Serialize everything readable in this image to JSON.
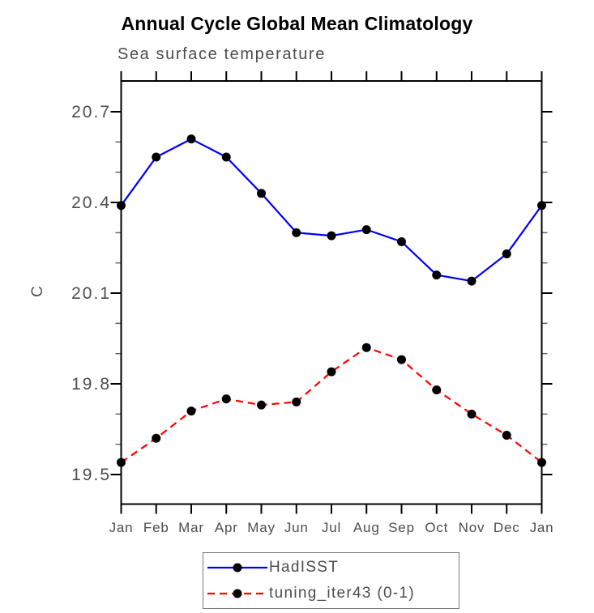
{
  "page": {
    "title": "Annual Cycle Global Mean Climatology",
    "subtitle": "Sea surface temperature"
  },
  "chart_data": {
    "type": "line",
    "title": "Annual Cycle Global Mean Climatology",
    "subtitle": "Sea surface temperature",
    "categories": [
      "Jan",
      "Feb",
      "Mar",
      "Apr",
      "May",
      "Jun",
      "Jul",
      "Aug",
      "Sep",
      "Oct",
      "Nov",
      "Dec",
      "Jan"
    ],
    "xlabel": "",
    "ylabel": "C",
    "ylim": [
      19.4,
      20.8
    ],
    "yticks_major": [
      20.7,
      20.4,
      20.1,
      19.8,
      19.5
    ],
    "ytick_labels": [
      "20.7",
      "20.4",
      "20.1",
      "19.8",
      "19.5"
    ],
    "yticks_minor": [
      20.6,
      20.5,
      20.3,
      20.2,
      20.0,
      19.9,
      19.7,
      19.6
    ],
    "grid": false,
    "legend_position": "bottom",
    "series": [
      {
        "name": "HadISST",
        "color": "#0000ff",
        "line_style": "solid",
        "marker": "circle",
        "marker_color": "#000000",
        "values": [
          20.39,
          20.55,
          20.61,
          20.55,
          20.43,
          20.3,
          20.29,
          20.31,
          20.27,
          20.16,
          20.14,
          20.23,
          20.39
        ]
      },
      {
        "name": "tuning_iter43 (0-1)",
        "color": "#ff0000",
        "line_style": "dashed",
        "marker": "circle",
        "marker_color": "#000000",
        "values": [
          19.54,
          19.62,
          19.71,
          19.75,
          19.73,
          19.74,
          19.84,
          19.92,
          19.88,
          19.78,
          19.7,
          19.63,
          19.54
        ]
      }
    ],
    "colors": {
      "axis": "#000000",
      "minor_tick": "#666666",
      "tick_label": "#4d4d4d",
      "title": "#000000",
      "subtitle": "#4d4d4d"
    }
  }
}
